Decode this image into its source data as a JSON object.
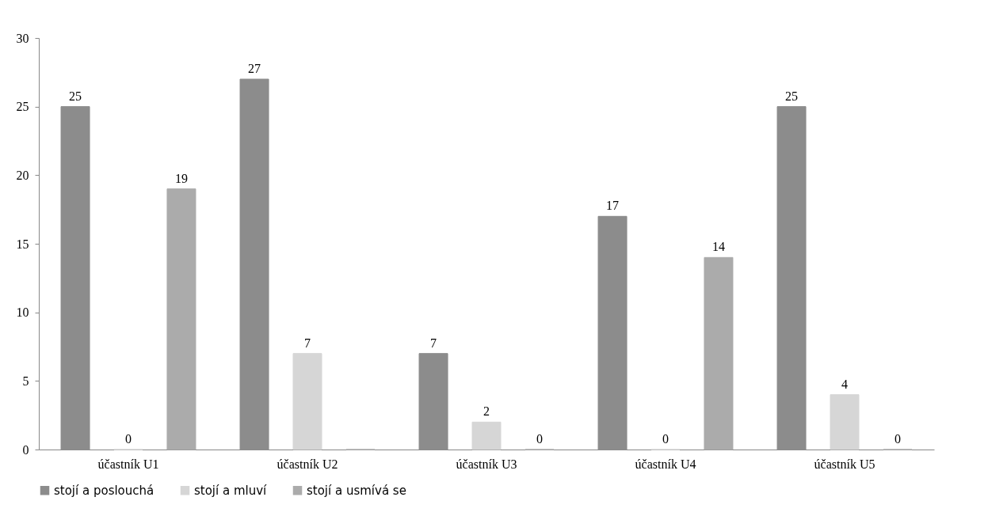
{
  "chart_data": {
    "type": "bar",
    "categories": [
      "účastník U1",
      "účastník U2",
      "účastník U3",
      "účastník U4",
      "účastník U5"
    ],
    "series": [
      {
        "name": "stojí a poslouchá",
        "color": "#8c8c8c",
        "values": [
          25,
          27,
          7,
          17,
          25
        ]
      },
      {
        "name": "stojí a mluví",
        "color": "#d6d6d6",
        "values": [
          0,
          7,
          2,
          0,
          4
        ]
      },
      {
        "name": "stojí a usmívá se",
        "color": "#ababab",
        "values": [
          19,
          null,
          0,
          14,
          0
        ]
      }
    ],
    "ylim": [
      0,
      30
    ],
    "yticks": [
      0,
      5,
      10,
      15,
      20,
      25,
      30
    ],
    "grid": false,
    "legend": "bottom",
    "data_labels": true
  }
}
